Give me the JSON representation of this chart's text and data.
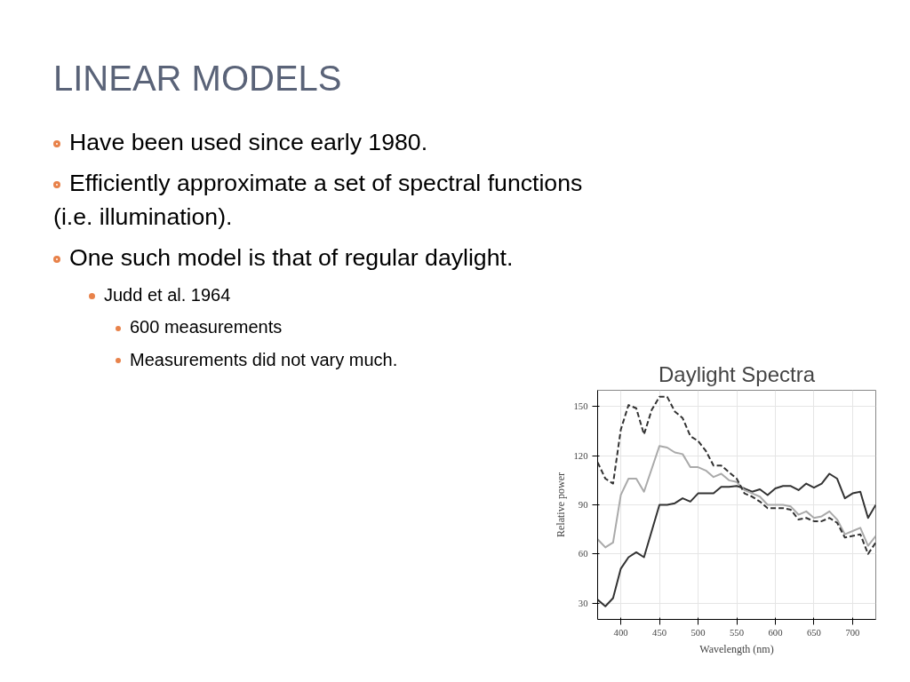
{
  "chart_data": {
    "type": "line",
    "title": "Daylight Spectra",
    "xlabel": "Wavelength (nm)",
    "ylabel": "Relative power",
    "annotations": [
      "LINEAR MODELS",
      "Have been used since early 1980.",
      "Efficiently approximate a set of spectral functions (i.e. illumination).",
      "One such model is that of regular daylight.",
      "Judd et al. 1964",
      "600 measurements",
      "Measurements did not vary much."
    ],
    "x": [
      370,
      380,
      390,
      400,
      410,
      420,
      430,
      440,
      450,
      460,
      470,
      480,
      490,
      500,
      510,
      520,
      530,
      540,
      550,
      560,
      570,
      580,
      590,
      600,
      610,
      620,
      630,
      640,
      650,
      660,
      670,
      680,
      690,
      700,
      710,
      720,
      730
    ],
    "series": [
      {
        "color": "#333333",
        "line_style": "solid",
        "values": [
          32,
          28,
          33,
          51,
          58,
          61,
          58,
          74,
          90,
          90,
          91,
          94,
          92,
          97,
          97,
          97,
          101,
          101,
          101.5,
          100,
          98,
          99.5,
          96,
          100,
          101.5,
          101.5,
          99,
          103,
          100.5,
          103,
          109,
          106,
          94,
          97,
          98,
          82,
          90
        ]
      },
      {
        "color": "#aaaaaa",
        "line_style": "solid",
        "values": [
          69,
          64,
          67,
          96,
          106,
          106,
          98,
          112,
          126,
          125,
          122,
          121,
          113,
          113,
          111,
          107,
          109,
          105,
          104,
          99,
          97,
          95,
          90,
          90,
          90,
          89,
          84,
          86,
          82,
          83,
          86,
          81,
          72,
          74,
          76,
          65,
          71
        ]
      },
      {
        "color": "#333333",
        "line_style": "dashed",
        "values": [
          116,
          106,
          103,
          136,
          151,
          149,
          133,
          148,
          156,
          156,
          147,
          143,
          132,
          129,
          123,
          114,
          114,
          110,
          106,
          97,
          95,
          92,
          88,
          88,
          88,
          87,
          81,
          82,
          80,
          80,
          82,
          79,
          70,
          71,
          72,
          60,
          67
        ]
      }
    ],
    "xlim": [
      370,
      730
    ],
    "ylim": [
      20,
      160
    ],
    "xticks": [
      400,
      450,
      500,
      550,
      600,
      650,
      700
    ],
    "yticks": [
      30,
      60,
      90,
      120,
      150
    ],
    "grid": true
  }
}
